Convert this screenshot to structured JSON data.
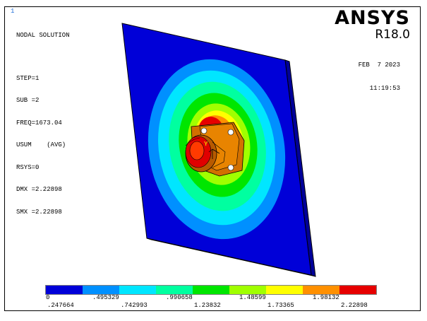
{
  "window": {
    "window_number": "1",
    "brand": "ANSYS",
    "version": "R18.0",
    "date": "FEB  7 2023",
    "time": "11:19:53"
  },
  "solution_info": {
    "title": "NODAL SOLUTION",
    "lines": [
      "STEP=1",
      "SUB =2",
      "FREQ=1673.04",
      "USUM    (AVG)",
      "RSYS=0",
      "DMX =2.22898",
      "SMX =2.22898"
    ]
  },
  "triad_label": "Y",
  "legend": {
    "colors": [
      "#0000d8",
      "#0090ff",
      "#00e6ff",
      "#00ffa0",
      "#00e600",
      "#a0ff00",
      "#ffff00",
      "#ff9000",
      "#e60000"
    ],
    "top_labels": [
      "0",
      ".495329",
      ".990658",
      "1.48599",
      "1.98132"
    ],
    "bottom_labels": [
      ".247664",
      ".742993",
      "1.23832",
      "1.73365",
      "2.22898"
    ]
  }
}
